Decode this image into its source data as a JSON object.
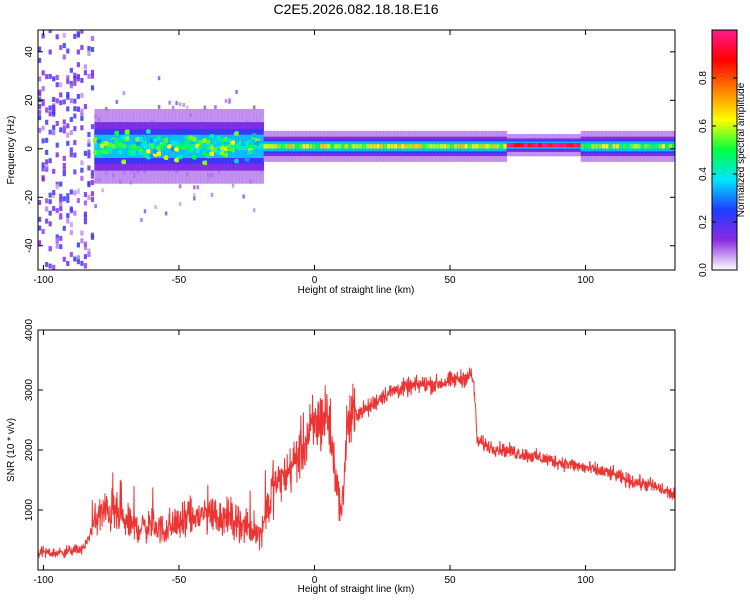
{
  "title": "C2E5.2026.082.18.18.E16",
  "chart_data": [
    {
      "type": "heatmap",
      "name": "spectrogram",
      "xlabel": "Height of straight line (km)",
      "ylabel": "Frequency (Hz)",
      "xlim": [
        -102,
        133
      ],
      "ylim": [
        -50,
        49
      ],
      "xticks": [
        -100,
        -50,
        0,
        50,
        100
      ],
      "yticks": [
        -40,
        -20,
        0,
        20,
        40
      ],
      "colorbar": {
        "label": "Normalized spectral amplitude",
        "range": [
          0.0,
          1.0
        ],
        "ticks": [
          0.0,
          0.2,
          0.4,
          0.6,
          0.8
        ],
        "colors": [
          "#ffffff",
          "#8a2be2",
          "#1e3cff",
          "#00e5ff",
          "#00ff40",
          "#ffff00",
          "#ff8000",
          "#ff0000",
          "#ff1a8c"
        ]
      },
      "bands": [
        {
          "x_from": -102,
          "x_to": -82,
          "freq_spread": 49,
          "amplitude": 0.2,
          "note": "broadband noise"
        },
        {
          "x_from": -82,
          "x_to": -20,
          "freq_spread": 8,
          "amplitude": 0.45,
          "note": "scattered energy"
        },
        {
          "x_from": -20,
          "x_to": 70,
          "freq_spread": 3,
          "amplitude": 0.6,
          "note": "narrow band"
        },
        {
          "x_from": 70,
          "x_to": 98,
          "freq_spread": 2,
          "amplitude": 0.95,
          "note": "peak band"
        },
        {
          "x_from": 98,
          "x_to": 133,
          "freq_spread": 3,
          "amplitude": 0.55,
          "note": "narrow band"
        }
      ]
    },
    {
      "type": "line",
      "name": "snr",
      "xlabel": "Height of straight line (km)",
      "ylabel": "SNR (10 * v/v)",
      "xlim": [
        -102,
        133
      ],
      "ylim": [
        0,
        4000
      ],
      "xticks": [
        -100,
        -50,
        0,
        50,
        100
      ],
      "yticks": [
        1000,
        2000,
        3000,
        4000
      ],
      "color": "#ee3333",
      "series": [
        {
          "name": "SNR",
          "x": [
            -102,
            -95,
            -90,
            -85,
            -80,
            -75,
            -70,
            -65,
            -60,
            -55,
            -50,
            -45,
            -40,
            -35,
            -30,
            -25,
            -20,
            -15,
            -10,
            -5,
            0,
            5,
            8,
            10,
            12,
            15,
            20,
            25,
            30,
            35,
            40,
            45,
            50,
            55,
            58,
            59,
            60,
            65,
            70,
            75,
            80,
            85,
            90,
            95,
            100,
            105,
            110,
            115,
            120,
            125,
            130,
            133
          ],
          "y": [
            300,
            280,
            320,
            360,
            900,
            1000,
            800,
            700,
            750,
            650,
            800,
            850,
            950,
            900,
            850,
            700,
            600,
            1400,
            1600,
            2000,
            2400,
            2600,
            1500,
            900,
            2400,
            2600,
            2700,
            2900,
            3000,
            3050,
            3100,
            3100,
            3150,
            3200,
            3250,
            3000,
            2150,
            2050,
            2000,
            1950,
            1900,
            1850,
            1800,
            1750,
            1700,
            1650,
            1600,
            1500,
            1450,
            1400,
            1300,
            1250
          ]
        }
      ]
    }
  ]
}
